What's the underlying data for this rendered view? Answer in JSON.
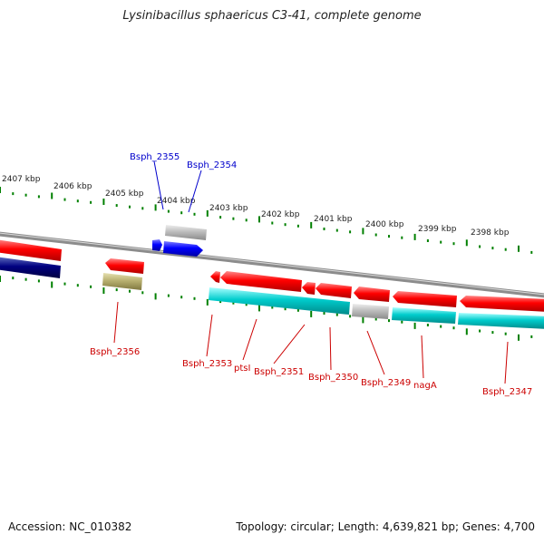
{
  "title": "Lysinibacillus sphaericus C3-41, complete genome",
  "accession": "Accession: NC_010382",
  "summary": "Topology: circular; Length: 4,639,821 bp; Genes: 4,700",
  "colors": {
    "forward_cds": "#0000ff",
    "reverse_cds": "#ff0000",
    "reverse_ortholog": "#00cccc",
    "forward_ortholog": "#000080",
    "pseudo_gray": "#b0b0b0",
    "olive": "#b8b070",
    "backbone": "#909090",
    "tick": "#008000",
    "forward_label": "#0000cc",
    "reverse_label": "#cc0000"
  },
  "kbp_labels": [
    "2407 kbp",
    "2406 kbp",
    "2405 kbp",
    "2404 kbp",
    "2403 kbp",
    "2402 kbp",
    "2401 kbp",
    "2400 kbp",
    "2399 kbp",
    "2398 kbp"
  ],
  "gene_labels": {
    "forward": [
      "Bsph_2355",
      "Bsph_2354"
    ],
    "reverse": [
      "Bsph_2356",
      "Bsph_2353",
      "ptsI",
      "Bsph_2351",
      "Bsph_2350",
      "Bsph_2349",
      "nagA",
      "Bsph_2347"
    ]
  }
}
